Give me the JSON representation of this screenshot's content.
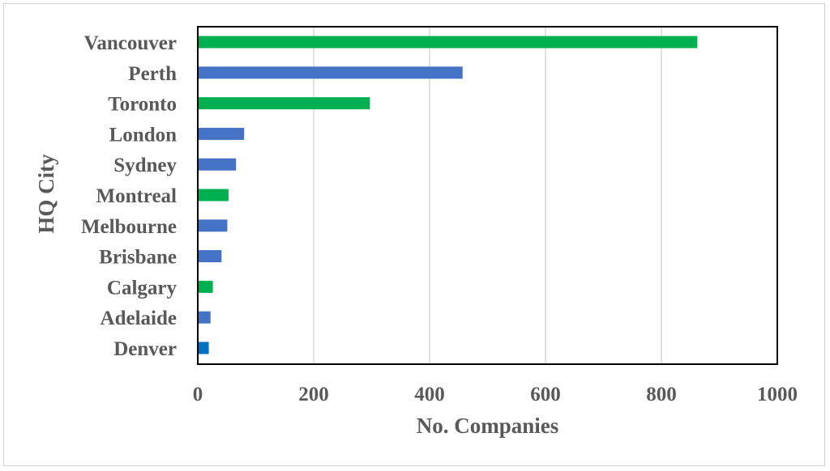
{
  "chart_data": {
    "type": "bar",
    "orientation": "horizontal",
    "xlabel": "No. Companies",
    "ylabel": "HQ City",
    "xlim": [
      0,
      1000
    ],
    "xticks": [
      0,
      200,
      400,
      600,
      800,
      1000
    ],
    "grid": "vertical",
    "categories": [
      "Vancouver",
      "Perth",
      "Toronto",
      "London",
      "Sydney",
      "Montreal",
      "Melbourne",
      "Brisbane",
      "Calgary",
      "Adelaide",
      "Denver"
    ],
    "values": [
      862,
      457,
      297,
      80,
      66,
      53,
      51,
      41,
      26,
      22,
      19
    ],
    "bar_colors": [
      "#00b050",
      "#4472c4",
      "#00b050",
      "#4472c4",
      "#4472c4",
      "#00b050",
      "#4472c4",
      "#4472c4",
      "#00b050",
      "#4472c4",
      "#0070c0"
    ]
  }
}
